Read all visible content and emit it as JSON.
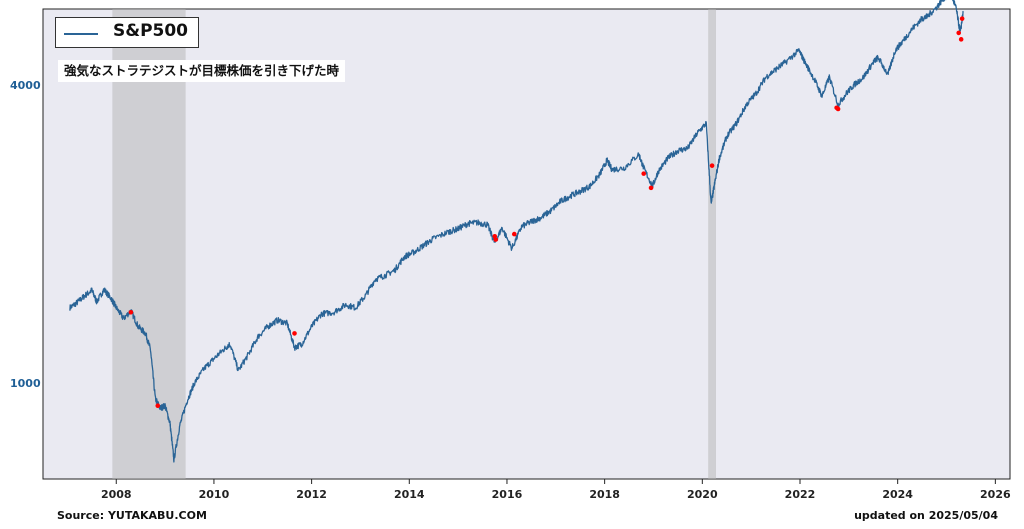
{
  "chart_data": {
    "type": "line",
    "title": "",
    "xlabel": "",
    "ylabel": "",
    "y_scale": "log",
    "ylim": [
      640,
      5700
    ],
    "xlim": [
      2006.5,
      2026.3
    ],
    "x_ticks": [
      2008,
      2010,
      2012,
      2014,
      2016,
      2018,
      2020,
      2022,
      2024,
      2026
    ],
    "x_tick_labels": [
      "2008",
      "2010",
      "2012",
      "2014",
      "2016",
      "2018",
      "2020",
      "2022",
      "2024",
      "2026"
    ],
    "y_ticks": [
      1000,
      4000
    ],
    "y_tick_labels": [
      "1000",
      "4000"
    ],
    "grid": false,
    "legend_position": "upper-left",
    "series": [
      {
        "name": "S&P500",
        "color": "#2a6496",
        "x": [
          2007.05,
          2007.2,
          2007.35,
          2007.5,
          2007.6,
          2007.75,
          2007.9,
          2008.0,
          2008.15,
          2008.3,
          2008.45,
          2008.6,
          2008.7,
          2008.8,
          2008.9,
          2009.0,
          2009.1,
          2009.18,
          2009.3,
          2009.45,
          2009.6,
          2009.8,
          2010.0,
          2010.2,
          2010.33,
          2010.5,
          2010.7,
          2010.9,
          2011.1,
          2011.3,
          2011.5,
          2011.65,
          2011.8,
          2012.0,
          2012.2,
          2012.45,
          2012.7,
          2012.9,
          2013.1,
          2013.3,
          2013.5,
          2013.7,
          2013.9,
          2014.1,
          2014.3,
          2014.5,
          2014.8,
          2015.0,
          2015.2,
          2015.4,
          2015.6,
          2015.75,
          2015.9,
          2016.1,
          2016.3,
          2016.5,
          2016.7,
          2016.9,
          2017.1,
          2017.3,
          2017.5,
          2017.7,
          2017.9,
          2018.05,
          2018.15,
          2018.4,
          2018.7,
          2018.8,
          2018.98,
          2019.1,
          2019.3,
          2019.5,
          2019.7,
          2019.9,
          2020.08,
          2020.18,
          2020.25,
          2020.35,
          2020.5,
          2020.7,
          2020.9,
          2021.1,
          2021.3,
          2021.5,
          2021.7,
          2021.98,
          2022.1,
          2022.3,
          2022.45,
          2022.6,
          2022.78,
          2022.95,
          2023.1,
          2023.3,
          2023.5,
          2023.6,
          2023.8,
          2023.95,
          2024.1,
          2024.3,
          2024.5,
          2024.6,
          2024.8,
          2024.95,
          2025.1,
          2025.2,
          2025.28,
          2025.34
        ],
        "values": [
          1420,
          1455,
          1500,
          1540,
          1460,
          1545,
          1480,
          1420,
          1350,
          1400,
          1300,
          1260,
          1170,
          930,
          890,
          900,
          830,
          700,
          820,
          920,
          1000,
          1070,
          1120,
          1170,
          1200,
          1060,
          1140,
          1240,
          1300,
          1340,
          1320,
          1180,
          1200,
          1300,
          1380,
          1390,
          1440,
          1420,
          1500,
          1620,
          1650,
          1690,
          1800,
          1840,
          1900,
          1960,
          2020,
          2050,
          2100,
          2110,
          2090,
          1920,
          2060,
          1870,
          2070,
          2120,
          2160,
          2230,
          2330,
          2390,
          2440,
          2500,
          2640,
          2820,
          2700,
          2720,
          2900,
          2720,
          2500,
          2680,
          2850,
          2950,
          2980,
          3200,
          3350,
          2300,
          2520,
          2850,
          3150,
          3350,
          3650,
          3850,
          4150,
          4300,
          4450,
          4700,
          4450,
          4100,
          3800,
          4150,
          3650,
          3850,
          4000,
          4150,
          4450,
          4550,
          4200,
          4700,
          4900,
          5200,
          5450,
          5500,
          5750,
          6000,
          6100,
          5700,
          5100,
          5600
        ]
      }
    ],
    "markers": {
      "name": "強気なストラテジストが目標株価を引き下げた時",
      "color": "#ff0000",
      "x": [
        2008.3,
        2008.85,
        2011.65,
        2015.75,
        2015.77,
        2016.15,
        2018.8,
        2018.95,
        2020.2,
        2022.75,
        2022.78,
        2025.25,
        2025.3,
        2025.32
      ],
      "values": [
        1390,
        900,
        1260,
        1980,
        1950,
        2000,
        2650,
        2480,
        2750,
        3600,
        3580,
        5100,
        4950,
        5450
      ]
    },
    "shaded_periods": [
      {
        "start": 2007.92,
        "end": 2009.42,
        "color": "#b4b4b4"
      },
      {
        "start": 2020.12,
        "end": 2020.28,
        "color": "#b4b4b4"
      }
    ],
    "annotation": "強気なストラテジストが目標株価を引き下げた時"
  },
  "legend": {
    "label": "S&P500"
  },
  "footer": {
    "source": "Source: YUTAKABU.COM",
    "updated": "updated on 2025/05/04"
  }
}
